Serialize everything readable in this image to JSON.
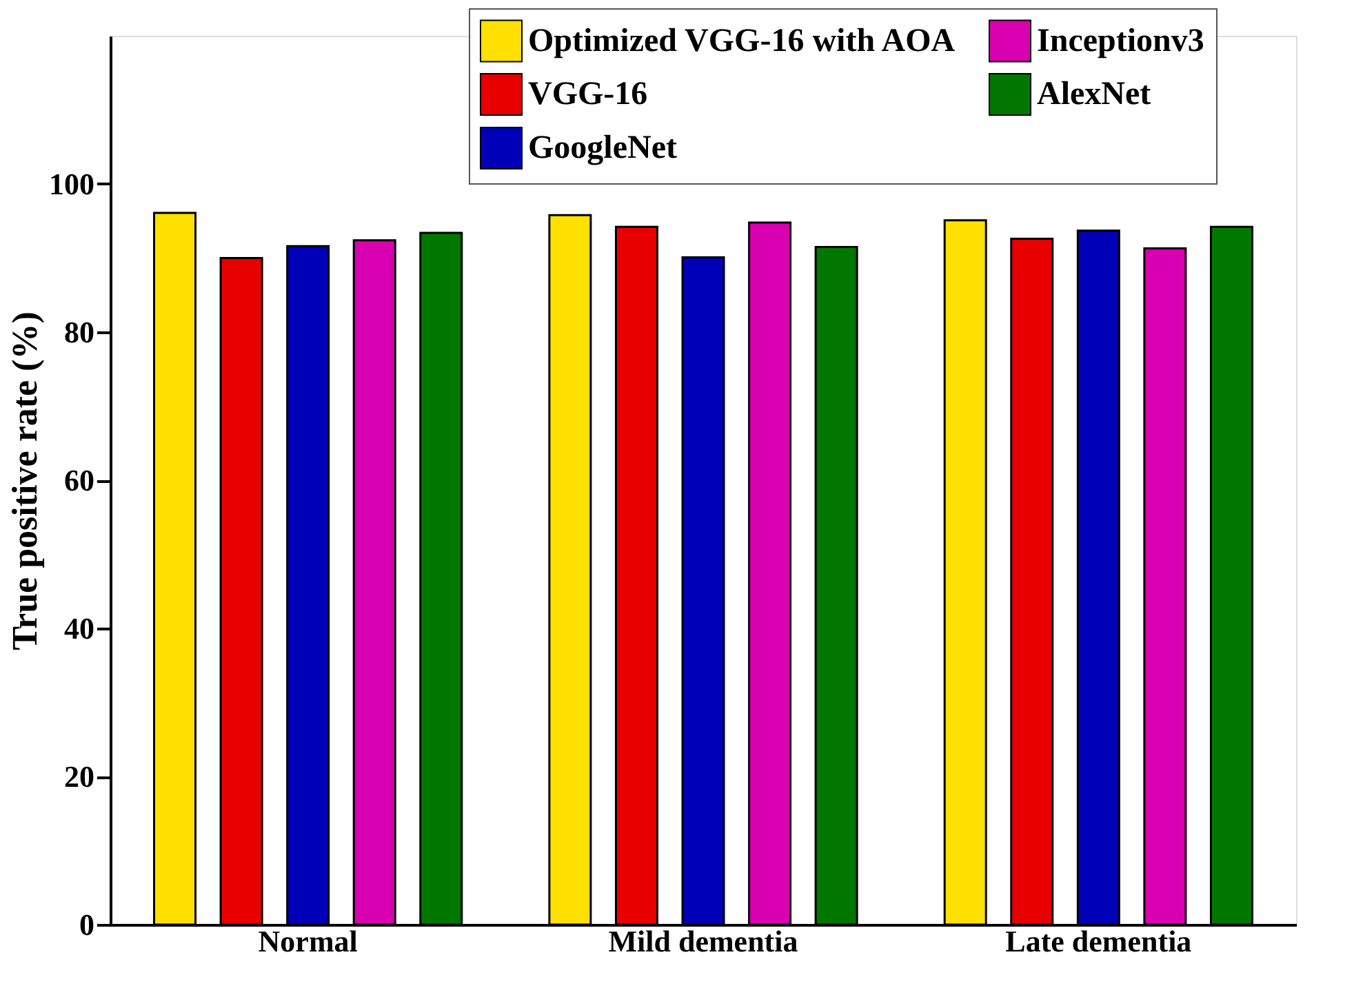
{
  "chart_data": {
    "type": "bar",
    "ylabel": "True positive rate (%)",
    "categories": [
      "Normal",
      "Mild dementia",
      "Late dementia"
    ],
    "series": [
      {
        "name": "Optimized VGG-16 with AOA",
        "color": "#ffe000",
        "values": [
          96.1,
          95.8,
          95.1
        ]
      },
      {
        "name": "VGG-16",
        "color": "#e80000",
        "values": [
          90.0,
          94.2,
          92.6
        ]
      },
      {
        "name": "GoogleNet",
        "color": "#0000b8",
        "values": [
          91.6,
          90.1,
          93.7
        ]
      },
      {
        "name": "Inceptionv3",
        "color": "#d800b0",
        "values": [
          92.4,
          94.8,
          91.3
        ]
      },
      {
        "name": "AlexNet",
        "color": "#007800",
        "values": [
          93.4,
          91.5,
          94.2
        ]
      }
    ],
    "ylim": [
      0,
      120
    ],
    "yticks": [
      0,
      20,
      40,
      60,
      80,
      100
    ],
    "grid": false,
    "legend": "top"
  }
}
